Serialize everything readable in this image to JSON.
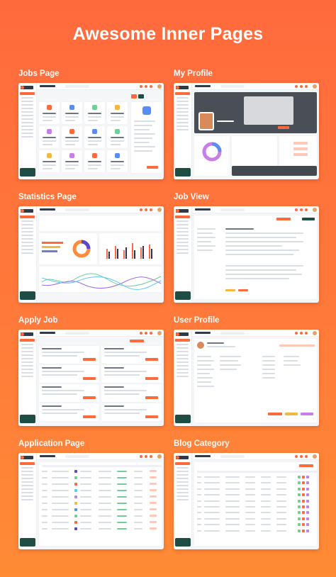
{
  "title": "Awesome Inner Pages",
  "pages": [
    {
      "label": "Jobs Page"
    },
    {
      "label": "My Profile"
    },
    {
      "label": "Statistics Page"
    },
    {
      "label": "Job View"
    },
    {
      "label": "Apply Job"
    },
    {
      "label": "User Profile"
    },
    {
      "label": "Application Page"
    },
    {
      "label": "Blog Category"
    }
  ],
  "colors": {
    "accent": "#ff6a3d",
    "background": "#ff7a3a",
    "sidebar_promo": "#1e4d43"
  }
}
